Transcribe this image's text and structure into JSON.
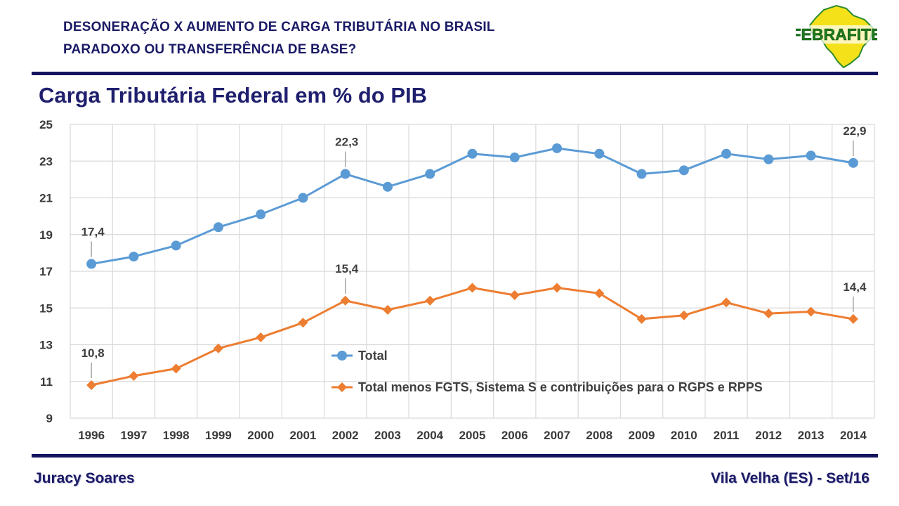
{
  "header": {
    "line1": "DESONERAÇÃO X AUMENTO DE CARGA TRIBUTÁRIA NO BRASIL",
    "line2": "PARADOXO OU TRANSFERÊNCIA DE BASE?"
  },
  "logo": {
    "text": "FEBRAFITE"
  },
  "slide_title": "Carga Tributária Federal em % do PIB",
  "footer": {
    "left": "Juracy Soares",
    "right": "Vila Velha (ES) - Set/16"
  },
  "colors": {
    "series1": "#5b9bd5",
    "series2": "#ed7d31",
    "title": "#1f1f6e",
    "rule": "#15155e"
  },
  "chart_data": {
    "type": "line",
    "title": "",
    "xlabel": "",
    "ylabel": "",
    "x": [
      "1996",
      "1997",
      "1998",
      "1999",
      "2000",
      "2001",
      "2002",
      "2003",
      "2004",
      "2005",
      "2006",
      "2007",
      "2008",
      "2009",
      "2010",
      "2011",
      "2012",
      "2013",
      "2014"
    ],
    "ylim": [
      9,
      25
    ],
    "yticks": [
      "9",
      "11",
      "13",
      "15",
      "17",
      "19",
      "21",
      "23",
      "25"
    ],
    "grid": true,
    "legend": "inside-lower-middle",
    "series": [
      {
        "name": "Total",
        "marker": "circle",
        "values": [
          17.4,
          17.8,
          18.4,
          19.4,
          20.1,
          21.0,
          22.3,
          21.6,
          22.3,
          23.4,
          23.2,
          23.7,
          23.4,
          22.3,
          22.5,
          23.4,
          23.1,
          23.3,
          22.9
        ]
      },
      {
        "name": "Total menos FGTS, Sistema S e contribuições para o RGPS e RPPS",
        "marker": "diamond",
        "values": [
          10.8,
          11.3,
          11.7,
          12.8,
          13.4,
          14.2,
          15.4,
          14.9,
          15.4,
          16.1,
          15.7,
          16.1,
          15.8,
          14.4,
          14.6,
          15.3,
          14.7,
          14.8,
          14.4
        ]
      }
    ],
    "annotations": [
      {
        "series": 0,
        "index": 0,
        "text": "17,4"
      },
      {
        "series": 0,
        "index": 6,
        "text": "22,3"
      },
      {
        "series": 0,
        "index": 18,
        "text": "22,9"
      },
      {
        "series": 1,
        "index": 0,
        "text": "10,8"
      },
      {
        "series": 1,
        "index": 6,
        "text": "15,4"
      },
      {
        "series": 1,
        "index": 18,
        "text": "14,4"
      }
    ]
  }
}
